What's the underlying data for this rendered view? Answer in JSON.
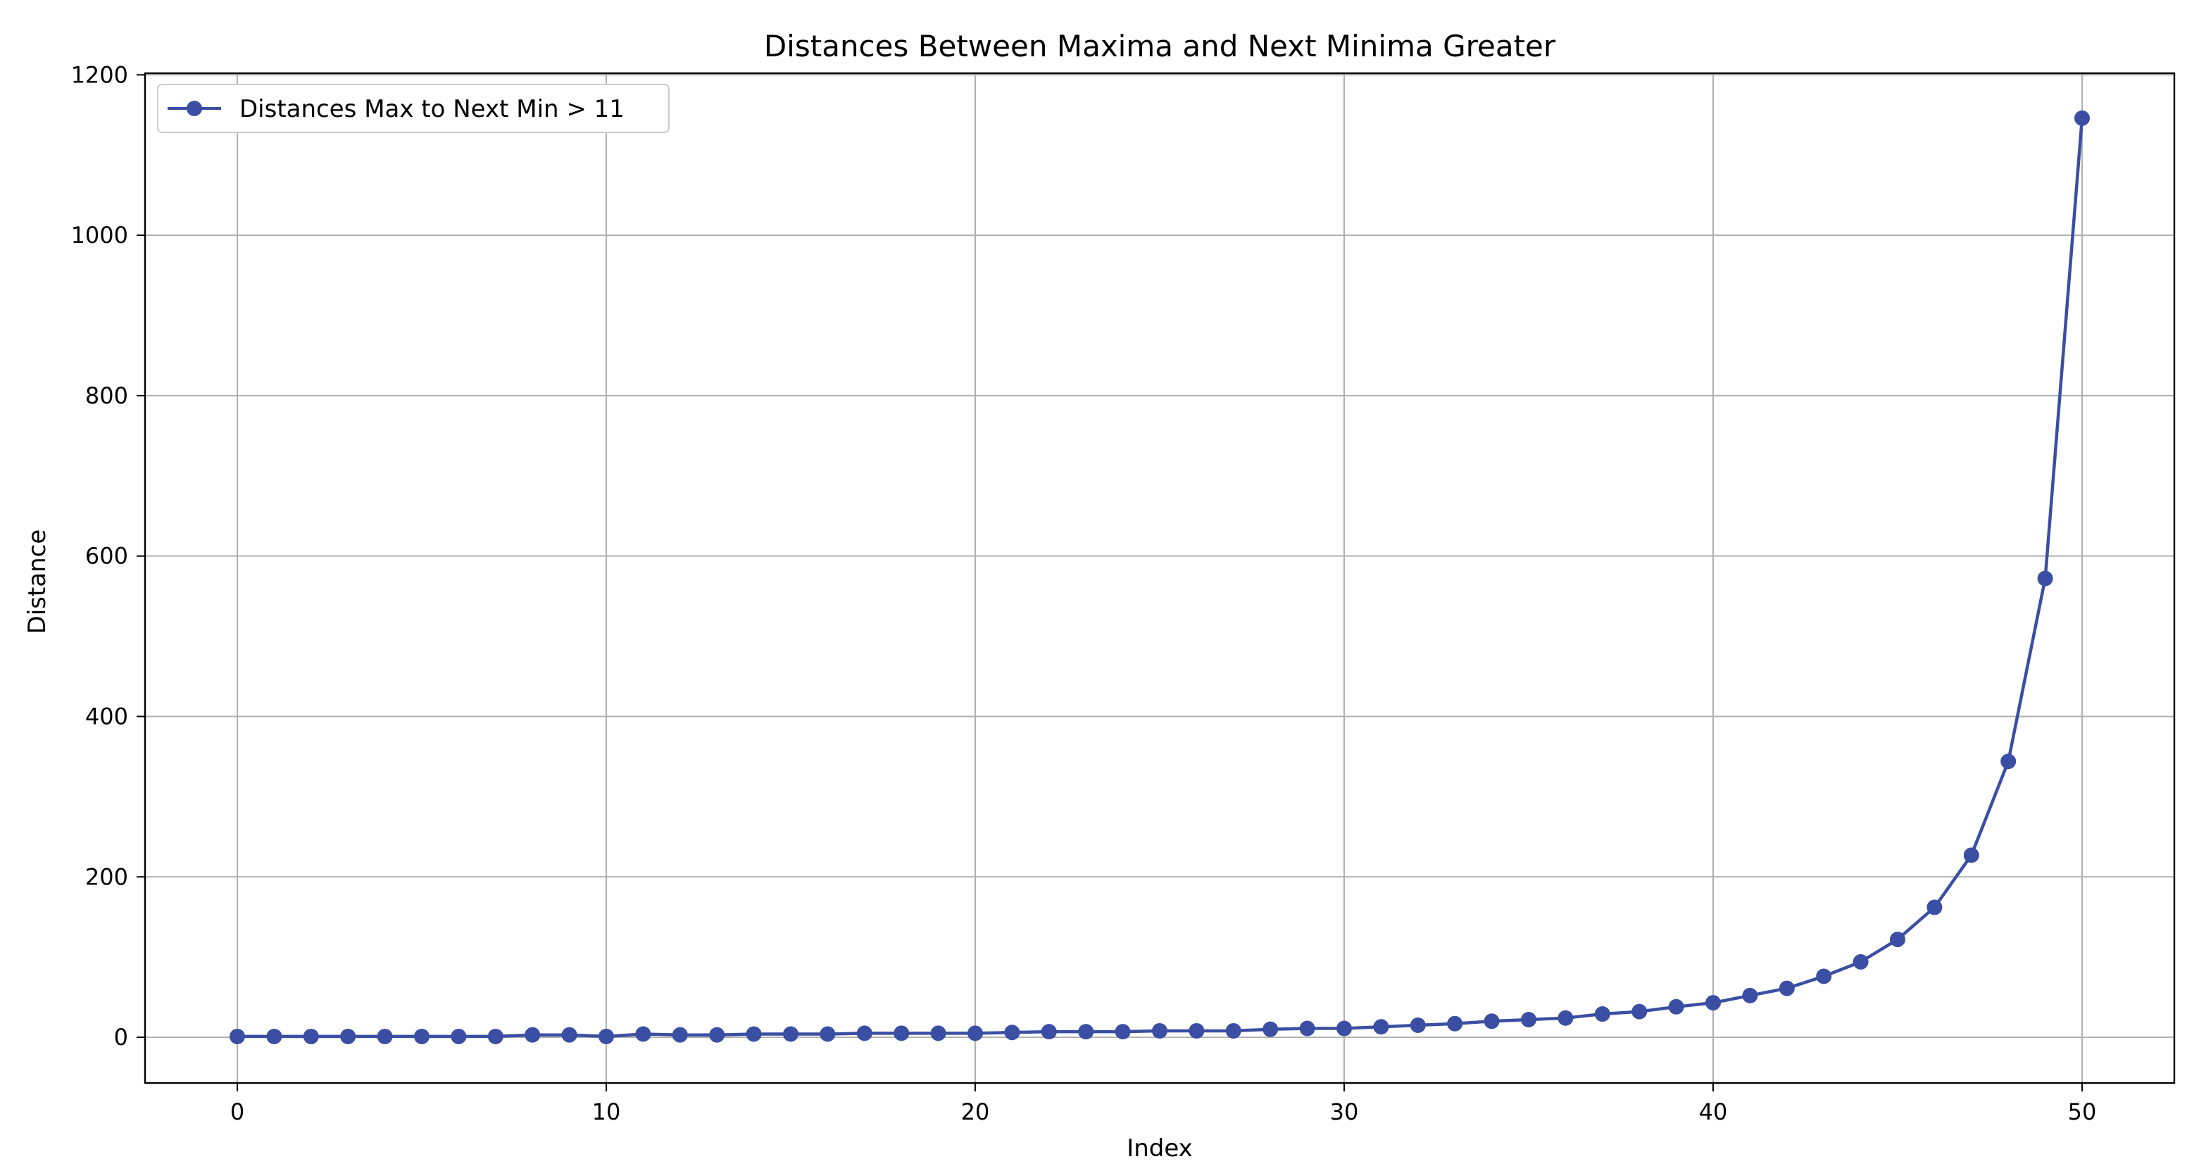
{
  "chart_data": {
    "type": "line",
    "title": "Distances Between Maxima and Next Minima Greater",
    "xlabel": "Index",
    "ylabel": "Distance",
    "xlim": [
      -2.5,
      52.5
    ],
    "ylim": [
      -57,
      1202
    ],
    "x_ticks": [
      0,
      10,
      20,
      30,
      40,
      50
    ],
    "y_ticks": [
      0,
      200,
      400,
      600,
      800,
      1000,
      1200
    ],
    "grid": true,
    "legend_position": "upper-left",
    "series_color": "#3a4fa3",
    "series": [
      {
        "name": "Distances Max to Next Min > 11",
        "x": [
          0,
          1,
          2,
          3,
          4,
          5,
          6,
          7,
          8,
          9,
          10,
          11,
          12,
          13,
          14,
          15,
          16,
          17,
          18,
          19,
          20,
          21,
          22,
          23,
          24,
          25,
          26,
          27,
          28,
          29,
          30,
          31,
          32,
          33,
          34,
          35,
          36,
          37,
          38,
          39,
          40,
          41,
          42,
          43,
          44,
          45,
          46,
          47,
          48,
          49,
          50
        ],
        "values": [
          1,
          1,
          1,
          1,
          1,
          1,
          1,
          1,
          3,
          3,
          1,
          4,
          3,
          3,
          4,
          4,
          4,
          5,
          5,
          5,
          5,
          6,
          7,
          7,
          7,
          8,
          8,
          8,
          10,
          11,
          11,
          13,
          15,
          17,
          20,
          22,
          24,
          29,
          32,
          38,
          43,
          52,
          61,
          76,
          94,
          122,
          162,
          227,
          344,
          572,
          1146
        ]
      }
    ]
  }
}
